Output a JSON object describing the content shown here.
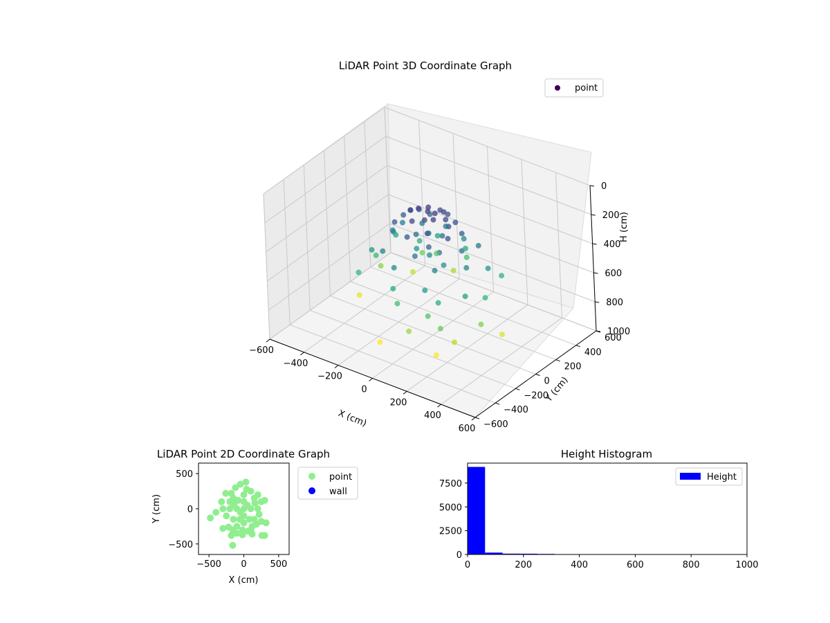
{
  "chart_data": [
    {
      "type": "scatter3d",
      "title": "LiDAR Point 3D Coordinate Graph",
      "xlabel": "X (cm)",
      "ylabel": "Y (cm)",
      "zlabel": "H (cm)",
      "xlim": [
        -600,
        600
      ],
      "ylim": [
        -600,
        600
      ],
      "zlim": [
        0,
        1000
      ],
      "z_inverted": true,
      "xticks": [
        "−600",
        "−400",
        "−200",
        "0",
        "200",
        "400",
        "600"
      ],
      "yticks": [
        "−600",
        "−400",
        "−200",
        "0",
        "200",
        "400",
        "600"
      ],
      "zticks": [
        "0",
        "200",
        "400",
        "600",
        "800",
        "1000"
      ],
      "colormap": "viridis",
      "legend": {
        "label": "point",
        "placement": "top-right",
        "color": "#440154"
      },
      "grid": true,
      "series": [
        {
          "name": "point",
          "points": [
            [
              0,
              0,
              150
            ],
            [
              30,
              20,
              160
            ],
            [
              -20,
              40,
              150
            ],
            [
              50,
              -30,
              170
            ],
            [
              -60,
              10,
              160
            ],
            [
              10,
              -50,
              180
            ],
            [
              80,
              40,
              190
            ],
            [
              -90,
              -20,
              170
            ],
            [
              40,
              90,
              180
            ],
            [
              -40,
              -90,
              190
            ],
            [
              120,
              0,
              200
            ],
            [
              -120,
              30,
              210
            ],
            [
              0,
              120,
              200
            ],
            [
              60,
              -110,
              220
            ],
            [
              -100,
              80,
              220
            ],
            [
              100,
              100,
              230
            ],
            [
              150,
              -60,
              240
            ],
            [
              -150,
              -80,
              250
            ],
            [
              20,
              160,
              240
            ],
            [
              -30,
              -160,
              260
            ],
            [
              160,
              60,
              260
            ],
            [
              -170,
              40,
              270
            ],
            [
              90,
              -150,
              280
            ],
            [
              -80,
              150,
              280
            ],
            [
              0,
              0,
              300
            ],
            [
              50,
              50,
              320
            ],
            [
              -50,
              -40,
              310
            ],
            [
              120,
              -100,
              330
            ],
            [
              -110,
              120,
              340
            ],
            [
              180,
              20,
              350
            ],
            [
              -190,
              -30,
              360
            ],
            [
              30,
              -190,
              350
            ],
            [
              -20,
              200,
              360
            ],
            [
              200,
              150,
              370
            ],
            [
              -220,
              110,
              380
            ],
            [
              150,
              -200,
              390
            ],
            [
              -160,
              -190,
              400
            ],
            [
              240,
              -40,
              410
            ],
            [
              -250,
              60,
              420
            ],
            [
              60,
              240,
              430
            ],
            [
              -60,
              -250,
              440
            ],
            [
              0,
              0,
              450
            ],
            [
              100,
              -30,
              460
            ],
            [
              -100,
              40,
              470
            ],
            [
              270,
              120,
              480
            ],
            [
              -280,
              -100,
              490
            ],
            [
              130,
              -270,
              500
            ],
            [
              -120,
              280,
              510
            ],
            [
              300,
              -160,
              520
            ],
            [
              -300,
              170,
              530
            ],
            [
              30,
              300,
              540
            ],
            [
              -40,
              -300,
              550
            ],
            [
              200,
              -260,
              560
            ],
            [
              -210,
              250,
              570
            ],
            [
              280,
              230,
              580
            ],
            [
              -290,
              -220,
              590
            ],
            [
              320,
              0,
              600
            ],
            [
              -330,
              20,
              610
            ],
            [
              0,
              -330,
              620
            ],
            [
              10,
              340,
              630
            ],
            [
              160,
              -300,
              650
            ],
            [
              -150,
              310,
              660
            ],
            [
              250,
              -330,
              680
            ],
            [
              -240,
              320,
              700
            ],
            [
              350,
              -100,
              720
            ],
            [
              -360,
              110,
              740
            ],
            [
              80,
              -360,
              760
            ],
            [
              -90,
              370,
              780
            ],
            [
              280,
              -250,
              800
            ],
            [
              -270,
              270,
              820
            ],
            [
              380,
              50,
              850
            ],
            [
              -390,
              -60,
              870
            ],
            [
              200,
              -300,
              900
            ],
            [
              -100,
              -350,
              920
            ]
          ]
        }
      ]
    },
    {
      "type": "scatter",
      "title": "LiDAR Point 2D Coordinate Graph",
      "xlabel": "X (cm)",
      "ylabel": "Y (cm)",
      "xlim": [
        -650,
        650
      ],
      "ylim": [
        -650,
        650
      ],
      "xticks": [
        "−500",
        "0",
        "500"
      ],
      "yticks": [
        "−500",
        "0",
        "500"
      ],
      "legend": {
        "placement": "outside-right"
      },
      "series": [
        {
          "name": "point",
          "color": "#90ee90",
          "points": [
            [
              0,
              0
            ],
            [
              50,
              50
            ],
            [
              -50,
              -50
            ],
            [
              100,
              0
            ],
            [
              -100,
              0
            ],
            [
              0,
              100
            ],
            [
              0,
              -100
            ],
            [
              150,
              150
            ],
            [
              -150,
              150
            ],
            [
              150,
              -150
            ],
            [
              -150,
              -150
            ],
            [
              200,
              0
            ],
            [
              -200,
              0
            ],
            [
              0,
              200
            ],
            [
              0,
              -200
            ],
            [
              250,
              100
            ],
            [
              -250,
              -100
            ],
            [
              100,
              250
            ],
            [
              -100,
              -250
            ],
            [
              180,
              -220
            ],
            [
              -180,
              220
            ],
            [
              -50,
              350
            ],
            [
              30,
              380
            ],
            [
              -20,
              -300
            ],
            [
              60,
              -320
            ],
            [
              -220,
              -260
            ],
            [
              -200,
              100
            ],
            [
              220,
              -80
            ],
            [
              -120,
              300
            ],
            [
              120,
              -250
            ],
            [
              -480,
              -130
            ],
            [
              -400,
              -50
            ],
            [
              -300,
              -280
            ],
            [
              -180,
              -380
            ],
            [
              -160,
              -520
            ],
            [
              -100,
              -350
            ],
            [
              -20,
              -370
            ],
            [
              120,
              -360
            ],
            [
              260,
              -380
            ],
            [
              300,
              -380
            ],
            [
              320,
              -200
            ],
            [
              300,
              120
            ],
            [
              250,
              -180
            ],
            [
              -320,
              100
            ],
            [
              -300,
              0
            ],
            [
              -260,
              220
            ],
            [
              -160,
              -300
            ],
            [
              -60,
              -150
            ],
            [
              80,
              -150
            ],
            [
              160,
              80
            ],
            [
              -80,
              120
            ],
            [
              40,
              280
            ],
            [
              -140,
              60
            ],
            [
              100,
              -300
            ],
            [
              200,
              200
            ]
          ]
        },
        {
          "name": "wall",
          "color": "#0000ff",
          "points": []
        }
      ]
    },
    {
      "type": "histogram",
      "title": "Height Histogram",
      "xlabel": "",
      "ylabel": "",
      "xlim": [
        0,
        1000
      ],
      "ylim": [
        0,
        9600
      ],
      "xticks": [
        "0",
        "200",
        "400",
        "600",
        "800",
        "1000"
      ],
      "yticks": [
        "0",
        "2500",
        "5000",
        "7500"
      ],
      "legend": {
        "label": "Height",
        "placement": "top-right"
      },
      "color": "#0000ff",
      "bin_edges": [
        0,
        62.5,
        125,
        187.5,
        250,
        312.5,
        375,
        437.5,
        500,
        562.5,
        625,
        687.5,
        750,
        812.5,
        875,
        937.5,
        1000
      ],
      "series": [
        {
          "name": "Height",
          "values": [
            9200,
            200,
            90,
            80,
            60,
            40,
            30,
            25,
            20,
            15,
            12,
            10,
            8,
            6,
            4,
            2
          ]
        }
      ]
    }
  ]
}
